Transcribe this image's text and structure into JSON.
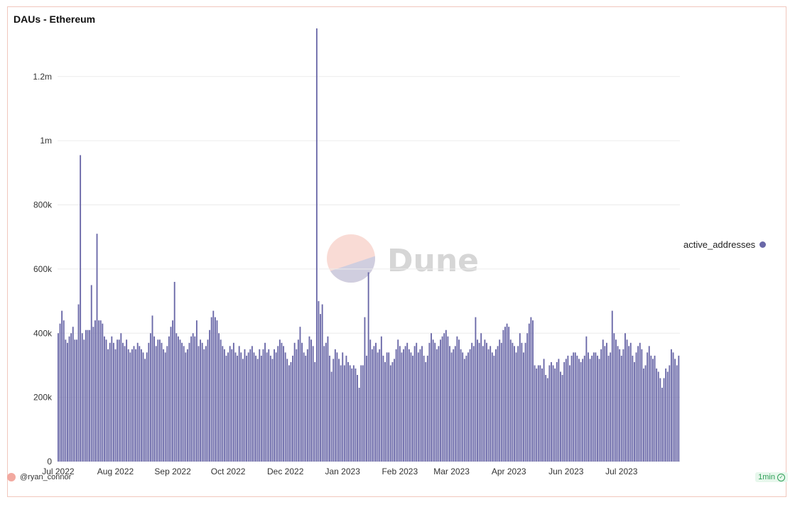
{
  "title": "DAUs - Ethereum",
  "author": "@ryan_connor",
  "badge": "1min",
  "watermark": "Dune",
  "colors": {
    "bar": "#6a68a8",
    "bar_stroke": "#4f4c90",
    "grid": "#ececec",
    "card_border": "#f1c7bd"
  },
  "chart_data": {
    "type": "bar",
    "legend": [
      "active_addresses"
    ],
    "legend_position": "right",
    "grid": true,
    "ylim": [
      0,
      1350000
    ],
    "y_ticks": [
      0,
      200000,
      400000,
      600000,
      800000,
      1000000,
      1200000
    ],
    "y_tick_labels": [
      "0",
      "200k",
      "400k",
      "600k",
      "800k",
      "1m",
      "1.2m"
    ],
    "x_tick_labels": [
      "Jul 2022",
      "Aug 2022",
      "Sep 2022",
      "Oct 2022",
      "Dec 2022",
      "Jan 2023",
      "Feb 2023",
      "Mar 2023",
      "Apr 2023",
      "Jun 2023",
      "Jul 2023"
    ],
    "x_tick_bar_index": [
      0,
      31,
      62,
      92,
      123,
      154,
      185,
      213,
      244,
      275,
      305
    ],
    "series": [
      {
        "name": "active_addresses",
        "values": [
          400000,
          430000,
          470000,
          440000,
          380000,
          370000,
          390000,
          400000,
          420000,
          380000,
          380000,
          490000,
          955000,
          400000,
          380000,
          410000,
          410000,
          410000,
          550000,
          420000,
          440000,
          710000,
          440000,
          440000,
          430000,
          390000,
          380000,
          350000,
          370000,
          390000,
          370000,
          350000,
          380000,
          380000,
          400000,
          370000,
          360000,
          380000,
          350000,
          340000,
          350000,
          360000,
          350000,
          370000,
          360000,
          350000,
          340000,
          320000,
          340000,
          370000,
          400000,
          455000,
          390000,
          360000,
          380000,
          380000,
          370000,
          350000,
          340000,
          360000,
          390000,
          420000,
          440000,
          560000,
          400000,
          390000,
          380000,
          370000,
          360000,
          340000,
          350000,
          370000,
          390000,
          400000,
          390000,
          440000,
          360000,
          380000,
          370000,
          350000,
          360000,
          380000,
          410000,
          450000,
          470000,
          450000,
          440000,
          400000,
          380000,
          360000,
          350000,
          330000,
          340000,
          360000,
          350000,
          370000,
          340000,
          330000,
          360000,
          340000,
          320000,
          350000,
          330000,
          340000,
          350000,
          360000,
          340000,
          330000,
          320000,
          350000,
          330000,
          350000,
          370000,
          340000,
          350000,
          330000,
          320000,
          350000,
          340000,
          360000,
          380000,
          370000,
          360000,
          340000,
          320000,
          300000,
          310000,
          330000,
          370000,
          350000,
          380000,
          420000,
          370000,
          340000,
          330000,
          350000,
          390000,
          380000,
          360000,
          310000,
          1350000,
          500000,
          460000,
          490000,
          360000,
          370000,
          390000,
          330000,
          280000,
          320000,
          350000,
          340000,
          320000,
          300000,
          340000,
          300000,
          330000,
          310000,
          300000,
          290000,
          300000,
          290000,
          270000,
          230000,
          300000,
          300000,
          450000,
          330000,
          590000,
          380000,
          350000,
          360000,
          370000,
          340000,
          350000,
          390000,
          330000,
          310000,
          340000,
          340000,
          300000,
          310000,
          320000,
          350000,
          380000,
          360000,
          340000,
          350000,
          360000,
          370000,
          350000,
          340000,
          330000,
          360000,
          370000,
          340000,
          350000,
          360000,
          330000,
          310000,
          330000,
          370000,
          400000,
          380000,
          370000,
          350000,
          360000,
          380000,
          390000,
          400000,
          410000,
          390000,
          360000,
          340000,
          350000,
          360000,
          390000,
          380000,
          350000,
          340000,
          320000,
          330000,
          340000,
          350000,
          370000,
          360000,
          450000,
          380000,
          370000,
          400000,
          360000,
          380000,
          370000,
          350000,
          360000,
          340000,
          330000,
          350000,
          360000,
          380000,
          370000,
          410000,
          420000,
          430000,
          420000,
          380000,
          370000,
          360000,
          340000,
          360000,
          400000,
          370000,
          340000,
          370000,
          400000,
          430000,
          450000,
          440000,
          300000,
          290000,
          300000,
          300000,
          290000,
          320000,
          270000,
          260000,
          300000,
          310000,
          300000,
          290000,
          310000,
          320000,
          280000,
          270000,
          310000,
          320000,
          330000,
          300000,
          330000,
          340000,
          340000,
          330000,
          320000,
          310000,
          320000,
          330000,
          390000,
          340000,
          320000,
          330000,
          340000,
          340000,
          330000,
          320000,
          350000,
          380000,
          360000,
          370000,
          330000,
          340000,
          470000,
          400000,
          380000,
          360000,
          350000,
          330000,
          350000,
          400000,
          380000,
          360000,
          370000,
          330000,
          310000,
          340000,
          360000,
          370000,
          350000,
          290000,
          300000,
          340000,
          360000,
          330000,
          320000,
          330000,
          290000,
          280000,
          260000,
          230000,
          260000,
          290000,
          280000,
          300000,
          350000,
          340000,
          320000,
          300000,
          330000
        ]
      }
    ]
  }
}
